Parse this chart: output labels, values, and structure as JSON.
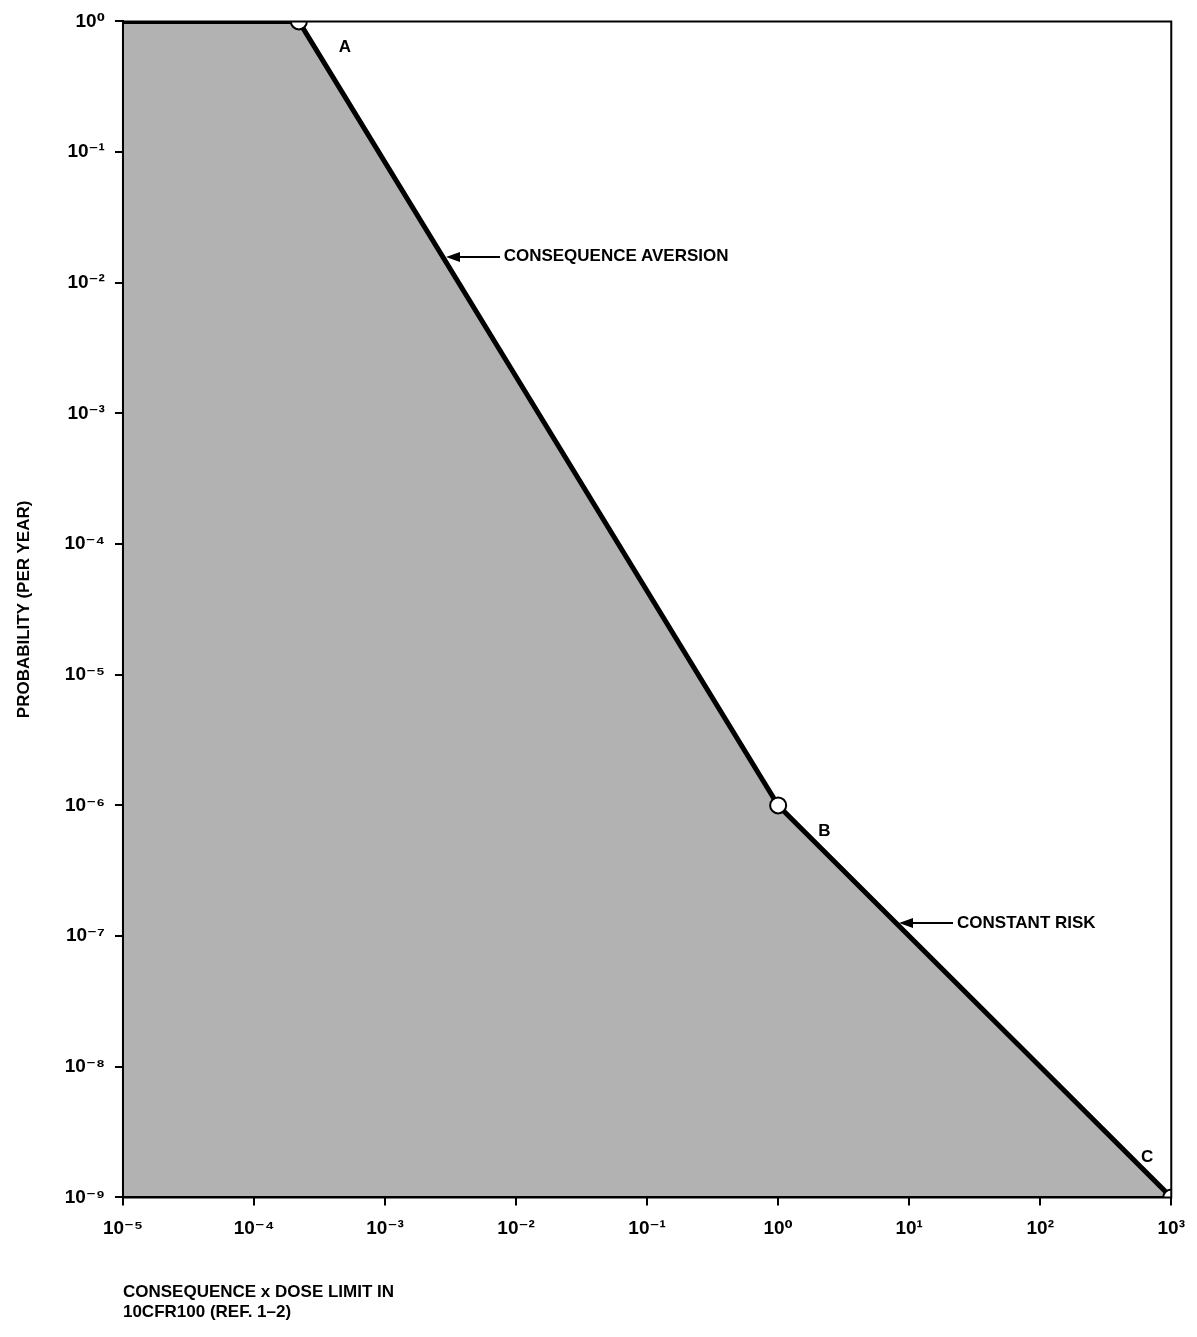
{
  "chart_data": {
    "type": "area",
    "xlabel": "CONSEQUENCE x DOSE LIMIT IN\n10CFR100 (REF. 1–2)",
    "ylabel": "PROBABILITY (PER YEAR)",
    "log": "xy",
    "grid": false,
    "legend": false,
    "marker": "circle",
    "line_style": "solid",
    "series": [
      {
        "color": "#000000",
        "x": [
          1e-05,
          0.00022,
          1,
          1000
        ],
        "values": [
          1,
          1,
          1e-06,
          1e-09
        ],
        "value_labels": [
          null,
          "A",
          "B",
          "C"
        ]
      }
    ],
    "xlim": [
      1e-05,
      1000
    ],
    "ylim": [
      1e-09,
      1
    ],
    "xticks": [
      {
        "value": 1e-05,
        "label": "10⁻⁵"
      },
      {
        "value": 0.0001,
        "label": "10⁻⁴"
      },
      {
        "value": 0.001,
        "label": "10⁻³"
      },
      {
        "value": 0.01,
        "label": "10⁻²"
      },
      {
        "value": 0.1,
        "label": "10⁻¹"
      },
      {
        "value": 1,
        "label": "10⁰"
      },
      {
        "value": 10,
        "label": "10¹"
      },
      {
        "value": 100,
        "label": "10²"
      },
      {
        "value": 1000,
        "label": "10³"
      }
    ],
    "yticks": [
      {
        "value": 1e-09,
        "label": "10⁻⁹"
      },
      {
        "value": 1e-08,
        "label": "10⁻⁸"
      },
      {
        "value": 1e-07,
        "label": "10⁻⁷"
      },
      {
        "value": 1e-06,
        "label": "10⁻⁶"
      },
      {
        "value": 1e-05,
        "label": "10⁻⁵"
      },
      {
        "value": 0.0001,
        "label": "10⁻⁴"
      },
      {
        "value": 0.001,
        "label": "10⁻³"
      },
      {
        "value": 0.01,
        "label": "10⁻²"
      },
      {
        "value": 0.1,
        "label": "10⁻¹"
      },
      {
        "value": 1,
        "label": "10⁰"
      }
    ],
    "annotations": [
      "CONSEQUENCE AVERSION",
      "CONSTANT RISK"
    ]
  }
}
